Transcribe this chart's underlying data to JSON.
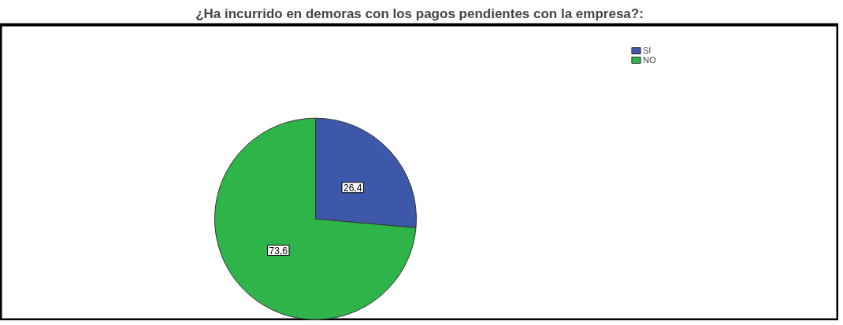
{
  "chart_data": {
    "type": "pie",
    "title": "¿Ha incurrido en demoras con los pagos pendientes con la empresa?:",
    "categories": [
      "SI",
      "NO"
    ],
    "values": [
      26.4,
      73.6
    ],
    "colors": [
      "#3d58a8",
      "#2fb44a"
    ],
    "value_labels": [
      "26,4",
      "73,6"
    ],
    "legend": "top right"
  }
}
